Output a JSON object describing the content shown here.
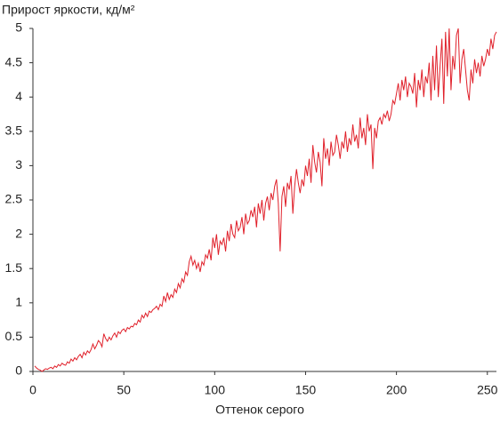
{
  "chart_data": {
    "type": "line",
    "title": "Прирост яркости, кд/м²",
    "x_label": "Оттенок серого",
    "x": [
      1,
      2,
      3,
      4,
      5,
      6,
      7,
      8,
      9,
      10,
      11,
      12,
      13,
      14,
      15,
      16,
      17,
      18,
      19,
      20,
      21,
      22,
      23,
      24,
      25,
      26,
      27,
      28,
      29,
      30,
      31,
      32,
      33,
      34,
      35,
      36,
      37,
      38,
      39,
      40,
      41,
      42,
      43,
      44,
      45,
      46,
      47,
      48,
      49,
      50,
      51,
      52,
      53,
      54,
      55,
      56,
      57,
      58,
      59,
      60,
      61,
      62,
      63,
      64,
      65,
      66,
      67,
      68,
      69,
      70,
      71,
      72,
      73,
      74,
      75,
      76,
      77,
      78,
      79,
      80,
      81,
      82,
      83,
      84,
      85,
      86,
      87,
      88,
      89,
      90,
      91,
      92,
      93,
      94,
      95,
      96,
      97,
      98,
      99,
      100,
      101,
      102,
      103,
      104,
      105,
      106,
      107,
      108,
      109,
      110,
      111,
      112,
      113,
      114,
      115,
      116,
      117,
      118,
      119,
      120,
      121,
      122,
      123,
      124,
      125,
      126,
      127,
      128,
      129,
      130,
      131,
      132,
      133,
      134,
      135,
      136,
      137,
      138,
      139,
      140,
      141,
      142,
      143,
      144,
      145,
      146,
      147,
      148,
      149,
      150,
      151,
      152,
      153,
      154,
      155,
      156,
      157,
      158,
      159,
      160,
      161,
      162,
      163,
      164,
      165,
      166,
      167,
      168,
      169,
      170,
      171,
      172,
      173,
      174,
      175,
      176,
      177,
      178,
      179,
      180,
      181,
      182,
      183,
      184,
      185,
      186,
      187,
      188,
      189,
      190,
      191,
      192,
      193,
      194,
      195,
      196,
      197,
      198,
      199,
      200,
      201,
      202,
      203,
      204,
      205,
      206,
      207,
      208,
      209,
      210,
      211,
      212,
      213,
      214,
      215,
      216,
      217,
      218,
      219,
      220,
      221,
      222,
      223,
      224,
      225,
      226,
      227,
      228,
      229,
      230,
      231,
      232,
      233,
      234,
      235,
      236,
      237,
      238,
      239,
      240,
      241,
      242,
      243,
      244,
      245,
      246,
      247,
      248,
      249,
      250,
      251,
      252,
      253,
      254,
      255
    ],
    "series": [
      {
        "color": "#e0202a",
        "values": [
          0.08,
          0.05,
          0.03,
          0.02,
          0.0,
          0.02,
          0.04,
          0.03,
          0.05,
          0.06,
          0.04,
          0.08,
          0.06,
          0.1,
          0.08,
          0.12,
          0.1,
          0.09,
          0.14,
          0.12,
          0.18,
          0.15,
          0.2,
          0.17,
          0.22,
          0.25,
          0.2,
          0.28,
          0.24,
          0.3,
          0.27,
          0.32,
          0.4,
          0.33,
          0.38,
          0.45,
          0.42,
          0.36,
          0.55,
          0.48,
          0.44,
          0.5,
          0.46,
          0.52,
          0.56,
          0.5,
          0.58,
          0.55,
          0.6,
          0.62,
          0.58,
          0.64,
          0.62,
          0.66,
          0.65,
          0.7,
          0.68,
          0.75,
          0.72,
          0.82,
          0.78,
          0.85,
          0.8,
          0.88,
          0.86,
          0.9,
          0.92,
          0.95,
          0.9,
          0.98,
          0.95,
          1.1,
          1.02,
          1.15,
          1.05,
          1.12,
          1.08,
          1.2,
          1.15,
          1.28,
          1.22,
          1.35,
          1.3,
          1.45,
          1.4,
          1.6,
          1.68,
          1.55,
          1.62,
          1.5,
          1.58,
          1.45,
          1.6,
          1.55,
          1.7,
          1.65,
          1.78,
          1.62,
          1.95,
          1.8,
          2.0,
          1.7,
          1.9,
          1.85,
          1.95,
          1.75,
          2.05,
          1.9,
          2.15,
          2.0,
          1.95,
          2.2,
          2.05,
          2.1,
          2.25,
          2.0,
          2.3,
          2.15,
          2.2,
          2.35,
          2.25,
          2.4,
          2.1,
          2.45,
          2.3,
          2.5,
          2.2,
          2.45,
          2.55,
          2.35,
          2.6,
          2.5,
          2.7,
          2.8,
          2.45,
          1.75,
          2.55,
          2.7,
          2.4,
          2.75,
          2.65,
          2.85,
          2.3,
          2.7,
          2.95,
          2.75,
          2.6,
          2.8,
          2.7,
          3.0,
          2.85,
          3.1,
          2.75,
          3.3,
          3.05,
          2.9,
          3.2,
          3.05,
          2.7,
          3.4,
          3.1,
          3.25,
          3.0,
          3.35,
          3.15,
          3.2,
          3.45,
          3.3,
          3.1,
          3.35,
          3.25,
          3.5,
          3.2,
          3.4,
          3.3,
          3.6,
          3.35,
          3.45,
          3.25,
          3.7,
          3.4,
          3.55,
          3.3,
          3.75,
          3.5,
          3.6,
          2.95,
          3.55,
          3.4,
          3.65,
          3.7,
          3.6,
          3.75,
          3.7,
          3.8,
          3.65,
          3.75,
          3.95,
          3.9,
          4.05,
          4.2,
          3.95,
          4.25,
          4.1,
          4.3,
          4.0,
          4.2,
          4.15,
          4.05,
          4.35,
          3.85,
          4.25,
          4.1,
          4.4,
          4.0,
          4.3,
          4.2,
          4.5,
          3.95,
          4.6,
          4.1,
          4.75,
          4.0,
          4.45,
          4.85,
          3.9,
          4.95,
          4.3,
          5.0,
          4.1,
          4.6,
          4.4,
          4.9,
          5.0,
          4.2,
          4.55,
          4.7,
          4.4,
          4.1,
          3.95,
          4.4,
          4.2,
          4.55,
          4.35,
          4.5,
          4.3,
          4.6,
          4.45,
          4.55,
          4.7,
          4.6,
          4.85,
          4.7,
          4.9,
          4.95
        ]
      }
    ],
    "xlim": [
      0,
      255
    ],
    "xticks": [
      0,
      50,
      100,
      150,
      200,
      250
    ],
    "ylim": [
      0,
      5
    ],
    "yticks": [
      0,
      0.5,
      1,
      1.5,
      2,
      2.5,
      3,
      3.5,
      4,
      4.5,
      5
    ]
  }
}
